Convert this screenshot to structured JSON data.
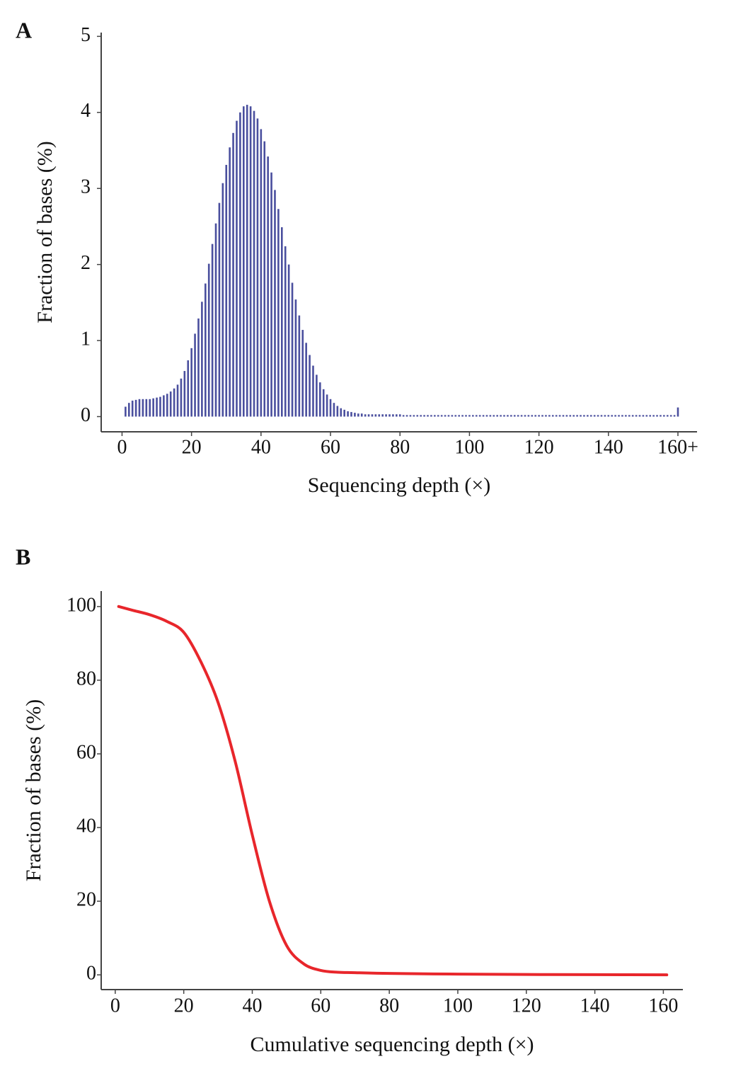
{
  "chart_data": [
    {
      "type": "bar",
      "panel": "A",
      "xlabel": "Sequencing depth (×)",
      "ylabel": "Fraction of bases (%)",
      "color": "#4a4f9e",
      "x": [
        1,
        2,
        3,
        4,
        5,
        6,
        7,
        8,
        9,
        10,
        11,
        12,
        13,
        14,
        15,
        16,
        17,
        18,
        19,
        20,
        21,
        22,
        23,
        24,
        25,
        26,
        27,
        28,
        29,
        30,
        31,
        32,
        33,
        34,
        35,
        36,
        37,
        38,
        39,
        40,
        41,
        42,
        43,
        44,
        45,
        46,
        47,
        48,
        49,
        50,
        51,
        52,
        53,
        54,
        55,
        56,
        57,
        58,
        59,
        60,
        61,
        62,
        63,
        64,
        65,
        66,
        67,
        68,
        69,
        70,
        71,
        72,
        73,
        74,
        75,
        76,
        77,
        78,
        79,
        80,
        81,
        82,
        83,
        84,
        85,
        86,
        87,
        88,
        89,
        90,
        91,
        92,
        93,
        94,
        95,
        96,
        97,
        98,
        99,
        100,
        101,
        102,
        103,
        104,
        105,
        106,
        107,
        108,
        109,
        110,
        111,
        112,
        113,
        114,
        115,
        116,
        117,
        118,
        119,
        120,
        121,
        122,
        123,
        124,
        125,
        126,
        127,
        128,
        129,
        130,
        131,
        132,
        133,
        134,
        135,
        136,
        137,
        138,
        139,
        140,
        141,
        142,
        143,
        144,
        145,
        146,
        147,
        148,
        149,
        150,
        151,
        152,
        153,
        154,
        155,
        156,
        157,
        158,
        159,
        160
      ],
      "values": [
        0.13,
        0.18,
        0.21,
        0.22,
        0.23,
        0.23,
        0.23,
        0.23,
        0.24,
        0.25,
        0.26,
        0.28,
        0.3,
        0.33,
        0.37,
        0.42,
        0.5,
        0.6,
        0.74,
        0.9,
        1.09,
        1.29,
        1.51,
        1.75,
        2.01,
        2.27,
        2.54,
        2.81,
        3.07,
        3.31,
        3.54,
        3.73,
        3.89,
        4.0,
        4.08,
        4.1,
        4.08,
        4.02,
        3.92,
        3.78,
        3.62,
        3.42,
        3.21,
        2.98,
        2.73,
        2.49,
        2.24,
        2.0,
        1.76,
        1.54,
        1.33,
        1.14,
        0.97,
        0.81,
        0.67,
        0.55,
        0.45,
        0.36,
        0.29,
        0.23,
        0.18,
        0.14,
        0.11,
        0.09,
        0.07,
        0.06,
        0.05,
        0.04,
        0.04,
        0.03,
        0.03,
        0.03,
        0.03,
        0.03,
        0.03,
        0.03,
        0.03,
        0.03,
        0.03,
        0.03,
        0.02,
        0.02,
        0.02,
        0.02,
        0.02,
        0.02,
        0.02,
        0.02,
        0.02,
        0.02,
        0.02,
        0.02,
        0.02,
        0.02,
        0.02,
        0.02,
        0.02,
        0.02,
        0.02,
        0.02,
        0.02,
        0.02,
        0.02,
        0.02,
        0.02,
        0.02,
        0.02,
        0.02,
        0.02,
        0.02,
        0.02,
        0.02,
        0.02,
        0.02,
        0.02,
        0.02,
        0.02,
        0.02,
        0.02,
        0.02,
        0.02,
        0.02,
        0.02,
        0.02,
        0.02,
        0.02,
        0.02,
        0.02,
        0.02,
        0.02,
        0.02,
        0.02,
        0.02,
        0.02,
        0.02,
        0.02,
        0.02,
        0.02,
        0.02,
        0.02,
        0.02,
        0.02,
        0.02,
        0.02,
        0.02,
        0.02,
        0.02,
        0.02,
        0.02,
        0.02,
        0.02,
        0.02,
        0.02,
        0.02,
        0.02,
        0.02,
        0.02,
        0.02,
        0.02,
        0.12
      ],
      "xlim": [
        -6,
        165.5
      ],
      "ylim": [
        -0.2,
        5.05
      ],
      "xticks": [
        0,
        20,
        40,
        60,
        80,
        100,
        120,
        140,
        {
          "value": 160,
          "label": "160+"
        }
      ],
      "yticks": [
        0,
        1,
        2,
        3,
        4,
        5
      ]
    },
    {
      "type": "line",
      "panel": "B",
      "xlabel": "Cumulative sequencing depth (×)",
      "ylabel": "Fraction of bases (%)",
      "color": "#e8262b",
      "x": [
        1,
        5,
        10,
        15,
        20,
        25,
        30,
        35,
        40,
        45,
        50,
        55,
        60,
        65,
        70,
        80,
        100,
        120,
        140,
        161
      ],
      "values": [
        100,
        99,
        97.8,
        96,
        93,
        85,
        74,
        58,
        38,
        20,
        8,
        3,
        1.2,
        0.7,
        0.6,
        0.4,
        0.2,
        0.1,
        0.05,
        0
      ],
      "xlim": [
        -4.1,
        165.7
      ],
      "ylim": [
        -4,
        104.2
      ],
      "xticks": [
        0,
        20,
        40,
        60,
        80,
        100,
        120,
        140,
        160
      ],
      "yticks": [
        0,
        20,
        40,
        60,
        80,
        100
      ]
    }
  ]
}
